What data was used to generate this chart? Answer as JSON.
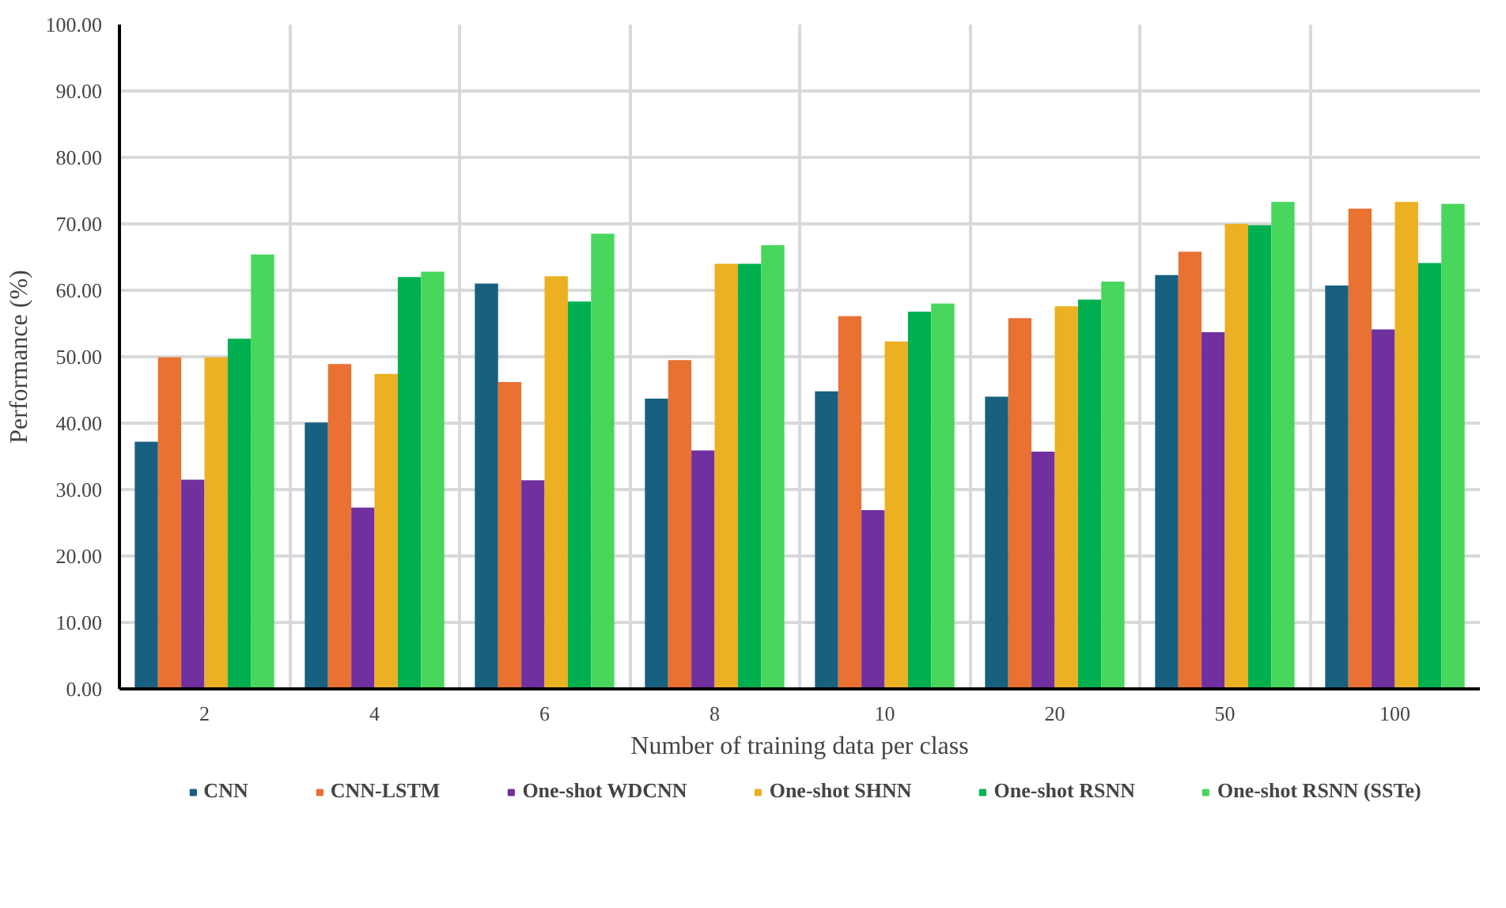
{
  "chart_data": {
    "type": "bar",
    "xlabel": "Number of training data per class",
    "ylabel": "Performance (%)",
    "categories": [
      "2",
      "4",
      "6",
      "8",
      "10",
      "20",
      "50",
      "100"
    ],
    "series": [
      {
        "name": "CNN",
        "color": "#17607f",
        "values": [
          37.2,
          40.1,
          61.0,
          43.7,
          44.8,
          44.0,
          62.3,
          60.7
        ]
      },
      {
        "name": "CNN-LSTM",
        "color": "#e97132",
        "values": [
          49.9,
          48.9,
          46.2,
          49.5,
          56.1,
          55.8,
          65.8,
          72.3
        ]
      },
      {
        "name": "One-shot WDCNN",
        "color": "#7030a0",
        "values": [
          31.5,
          27.3,
          31.4,
          35.9,
          26.9,
          35.7,
          53.7,
          54.1
        ]
      },
      {
        "name": "One-shot SHNN",
        "color": "#ecb023",
        "values": [
          49.9,
          47.4,
          62.1,
          64.0,
          52.3,
          57.6,
          70.0,
          73.3
        ]
      },
      {
        "name": "One-shot RSNN",
        "color": "#00b050",
        "values": [
          52.7,
          62.0,
          58.3,
          64.0,
          56.8,
          58.6,
          69.8,
          64.1
        ]
      },
      {
        "name": "One-shot RSNN (SSTe)",
        "color": "#48d65c",
        "values": [
          65.4,
          62.8,
          68.5,
          66.8,
          58.0,
          61.3,
          73.3,
          73.0
        ]
      }
    ],
    "ylim": [
      0,
      100
    ],
    "yticks": [
      {
        "value": 0,
        "label": "0.00"
      },
      {
        "value": 10,
        "label": "10.00"
      },
      {
        "value": 20,
        "label": "20.00"
      },
      {
        "value": 30,
        "label": "30.00"
      },
      {
        "value": 40,
        "label": "40.00"
      },
      {
        "value": 50,
        "label": "50.00"
      },
      {
        "value": 60,
        "label": "60.00"
      },
      {
        "value": 70,
        "label": "70.00"
      },
      {
        "value": 80,
        "label": "80.00"
      },
      {
        "value": 90,
        "label": "90.00"
      },
      {
        "value": 100,
        "label": "100.00"
      }
    ],
    "grid": true,
    "legend": "bottom"
  }
}
